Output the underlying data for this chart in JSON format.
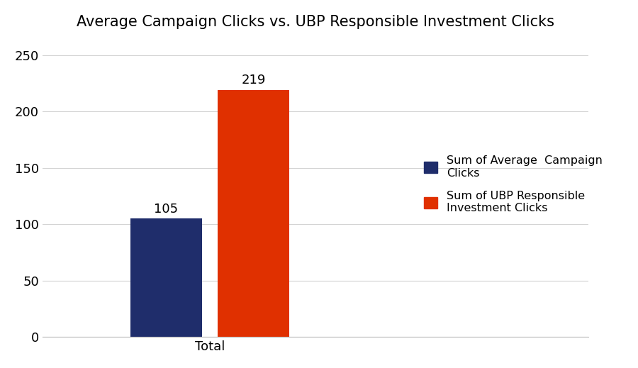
{
  "title": "Average Campaign Clicks vs. UBP Responsible Investment Clicks",
  "categories": [
    "Total"
  ],
  "bar1_values": [
    105
  ],
  "bar2_values": [
    219
  ],
  "bar1_color": "#1F2D6B",
  "bar2_color": "#E03000",
  "bar1_label": "Sum of Average  Campaign\nClicks",
  "bar2_label": "Sum of UBP Responsible\nInvestment Clicks",
  "ylim": [
    0,
    260
  ],
  "yticks": [
    0,
    50,
    100,
    150,
    200,
    250
  ],
  "bar_width": 0.18,
  "bar_gap": 0.04,
  "background_color": "#ffffff",
  "grid_color": "#d3d3d3",
  "title_fontsize": 15,
  "tick_fontsize": 13,
  "legend_fontsize": 11.5,
  "annot_fontsize": 13
}
